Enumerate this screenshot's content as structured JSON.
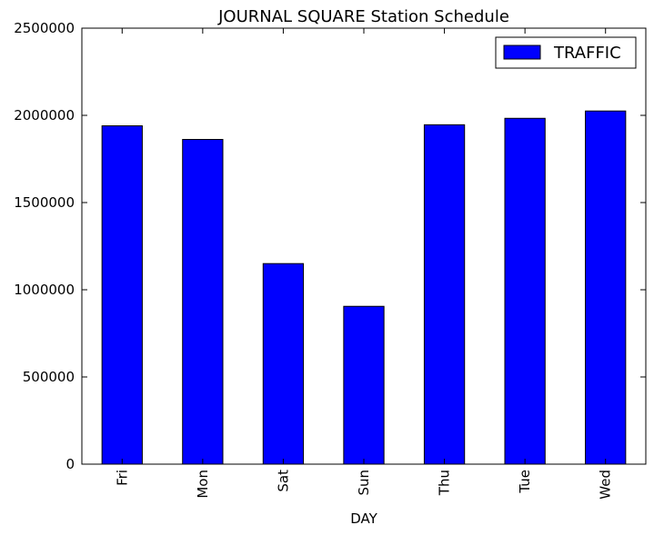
{
  "chart_data": {
    "type": "bar",
    "title": "JOURNAL SQUARE Station Schedule",
    "xlabel": "DAY",
    "ylabel": "",
    "categories": [
      "Fri",
      "Mon",
      "Sat",
      "Sun",
      "Thu",
      "Tue",
      "Wed"
    ],
    "series": [
      {
        "name": "TRAFFIC",
        "color": "#0000ff",
        "values": [
          1940000,
          1862000,
          1150000,
          905000,
          1946000,
          1983000,
          2025000
        ]
      }
    ],
    "ylim": [
      0,
      2500000
    ],
    "yticks": [
      "0",
      "500000",
      "1000000",
      "1500000",
      "2000000",
      "2500000"
    ],
    "grid": false,
    "legend_position": "top-right"
  }
}
